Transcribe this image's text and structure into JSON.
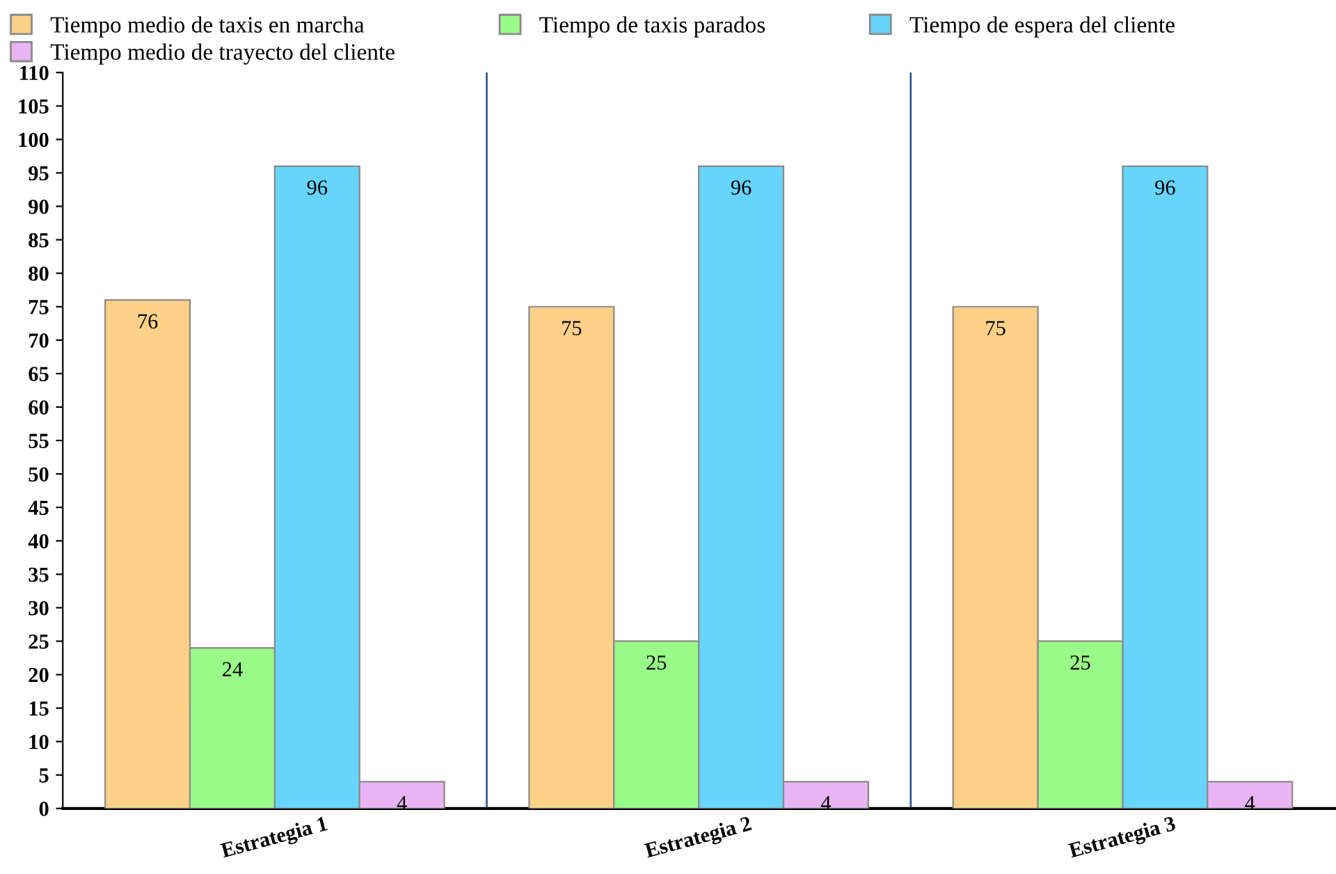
{
  "chart_data": {
    "type": "bar",
    "categories": [
      "Estrategia 1",
      "Estrategia 2",
      "Estrategia 3"
    ],
    "series": [
      {
        "name": "Tiempo medio de taxis en marcha",
        "color": "#fdd088",
        "values": [
          76,
          75,
          75
        ]
      },
      {
        "name": "Tiempo de taxis parados",
        "color": "#99fb88",
        "values": [
          24,
          25,
          25
        ]
      },
      {
        "name": "Tiempo de espera del cliente",
        "color": "#66d4fb",
        "values": [
          96,
          96,
          96
        ]
      },
      {
        "name": "Tiempo medio de trayecto del cliente",
        "color": "#e8b4f4",
        "values": [
          4,
          4,
          4
        ]
      }
    ],
    "ylim": [
      0,
      110
    ],
    "yticks": [
      0,
      5,
      10,
      15,
      20,
      25,
      30,
      35,
      40,
      45,
      50,
      55,
      60,
      65,
      70,
      75,
      80,
      85,
      90,
      95,
      100,
      105,
      110
    ],
    "grid": "x",
    "legend": "top left",
    "data_labels": true
  }
}
